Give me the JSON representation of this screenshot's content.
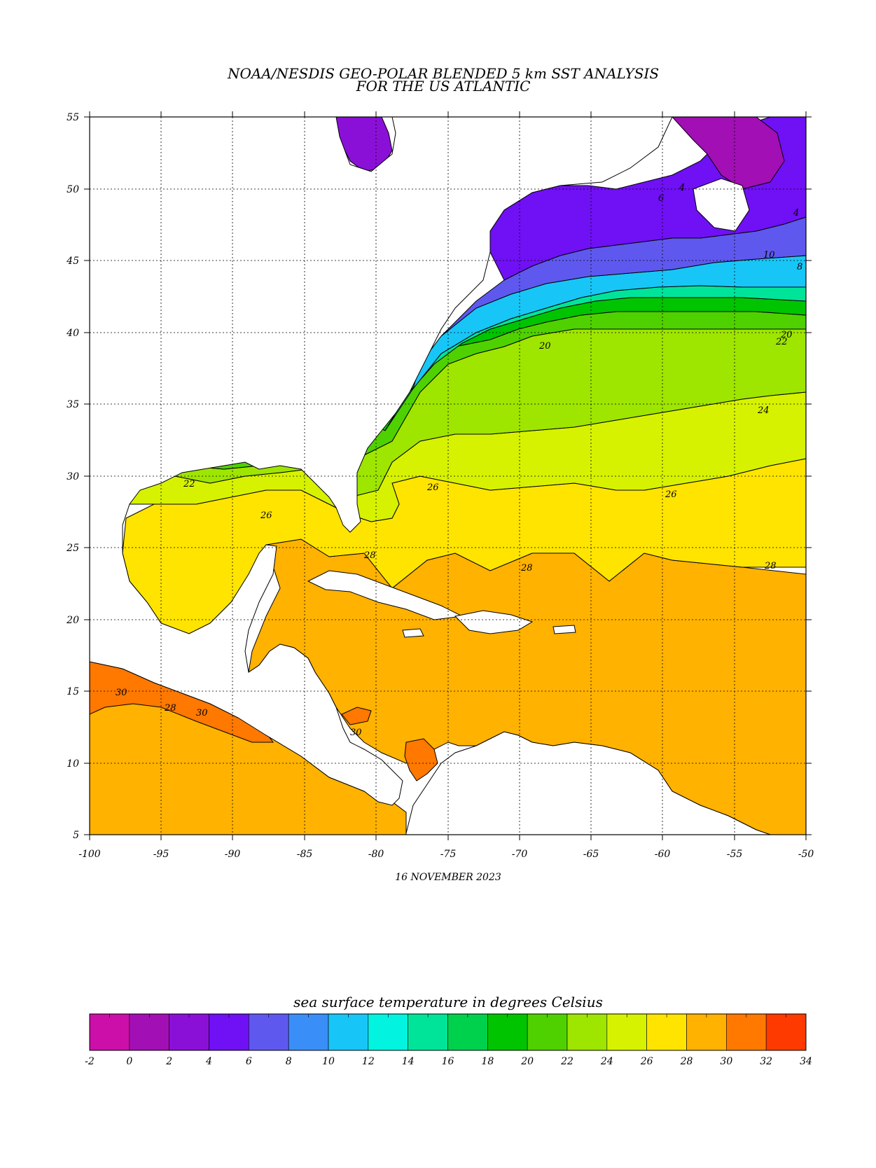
{
  "title": {
    "line1": "NOAA/NESDIS GEO-POLAR BLENDED 5 km SST ANALYSIS",
    "line2": "FOR THE US ATLANTIC"
  },
  "date_label": "16 NOVEMBER 2023",
  "map": {
    "lon_range": [
      -100,
      -50
    ],
    "lat_range": [
      5,
      55
    ],
    "lon_ticks": [
      "-100",
      "-95",
      "-90",
      "-85",
      "-80",
      "-75",
      "-70",
      "-65",
      "-60",
      "-55",
      "-50"
    ],
    "lat_ticks": [
      "55",
      "50",
      "45",
      "40",
      "35",
      "30",
      "25",
      "20",
      "15",
      "10",
      "5"
    ],
    "grid": "dotted"
  },
  "contour_labels": [
    "10",
    "20",
    "20",
    "22",
    "24",
    "26",
    "26",
    "26",
    "28",
    "28",
    "28",
    "30",
    "30",
    "30",
    "28",
    "22",
    "4",
    "6",
    "8",
    "4"
  ],
  "colorbar": {
    "label": "sea surface temperature in degrees Celsius",
    "tick_labels": [
      "-2",
      "0",
      "2",
      "4",
      "6",
      "8",
      "10",
      "12",
      "14",
      "16",
      "18",
      "20",
      "22",
      "24",
      "26",
      "28",
      "30",
      "32",
      "34"
    ],
    "colors": [
      "#cc0fa8",
      "#a20fb5",
      "#8a10d8",
      "#7010f4",
      "#5f58ef",
      "#3a8ef8",
      "#17c6f7",
      "#02f3e0",
      "#00e499",
      "#00d14d",
      "#00c400",
      "#4fd100",
      "#9ee500",
      "#d6f200",
      "#ffe400",
      "#ffb200",
      "#ff7800",
      "#ff3a00"
    ]
  }
}
